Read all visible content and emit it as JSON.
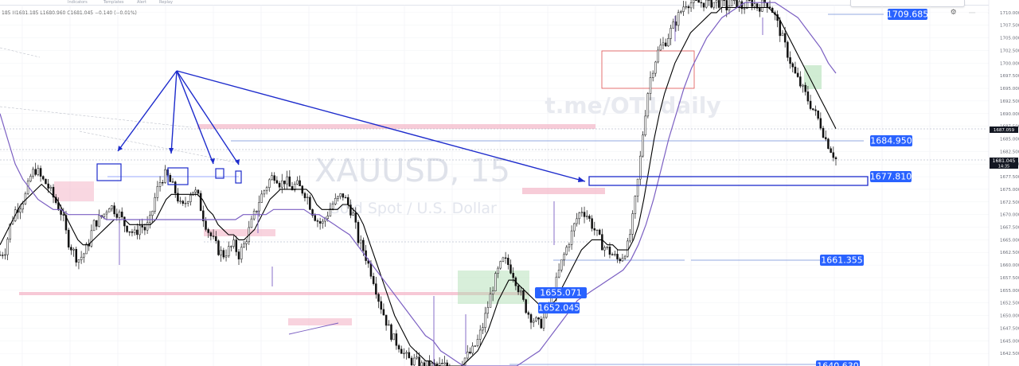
{
  "header": {
    "ohlc": "185  H1681.185  L1680.960  C1681.045  −0.140 (−0.01%)"
  },
  "watermark": {
    "symbol": "XAUUSD, 15",
    "description": "Gold Spot / U.S. Dollar",
    "channel": "t.me/OT1daily"
  },
  "chart_data": {
    "type": "candlestick",
    "symbol": "XAUUSD",
    "interval": "15",
    "description": "Gold Spot / U.S. Dollar",
    "ylim": [
      1640.0,
      1712.5
    ],
    "y_ticks": [
      1710.0,
      1707.5,
      1705.0,
      1702.5,
      1700.0,
      1697.5,
      1695.0,
      1692.5,
      1690.0,
      1687.5,
      1685.0,
      1682.5,
      1680.0,
      1677.5,
      1675.0,
      1672.5,
      1670.0,
      1667.5,
      1665.0,
      1662.5,
      1660.0,
      1657.5,
      1655.0,
      1652.5,
      1650.0,
      1647.5,
      1645.0,
      1642.5
    ],
    "y_tick_labels": [
      "1710.000",
      "1707.500",
      "1705.000",
      "1702.500",
      "1700.000",
      "1697.500",
      "1695.000",
      "1692.500",
      "1690.000",
      "1687.500",
      "1685.000",
      "1682.500",
      "1680.000",
      "1677.500",
      "1675.000",
      "1672.500",
      "1670.000",
      "1667.500",
      "1665.000",
      "1662.500",
      "1660.000",
      "1657.500",
      "1655.000",
      "1652.500",
      "1650.000",
      "1647.500",
      "1645.000",
      "1642.500"
    ],
    "current_price": "1681.045",
    "current_price_time": "14:35",
    "crosshair_price": "1687.059",
    "price_path": [
      1662,
      1663,
      1668,
      1671,
      1672,
      1674,
      1678,
      1679,
      1677,
      1676,
      1674,
      1672,
      1670,
      1665,
      1663,
      1661,
      1662,
      1664,
      1668,
      1669,
      1670,
      1672,
      1671,
      1670,
      1668,
      1667,
      1666,
      1668,
      1667,
      1669,
      1674,
      1677,
      1678,
      1676,
      1674,
      1671,
      1673,
      1675,
      1674,
      1670,
      1667,
      1665,
      1663,
      1662,
      1663,
      1664,
      1662,
      1664,
      1667,
      1670,
      1673,
      1675,
      1677,
      1678,
      1676,
      1677,
      1675,
      1676,
      1675,
      1674,
      1671,
      1669,
      1668,
      1670,
      1672,
      1673,
      1674,
      1672,
      1670,
      1665,
      1663,
      1660,
      1657,
      1653,
      1650,
      1647,
      1645,
      1644,
      1642,
      1641,
      1641,
      1640,
      1640,
      1640,
      1640,
      1640,
      1640,
      1640,
      1640,
      1641,
      1642,
      1643,
      1645,
      1648,
      1652,
      1656,
      1659,
      1661,
      1660,
      1658,
      1655,
      1652,
      1650,
      1649,
      1648,
      1650,
      1653,
      1656,
      1660,
      1663,
      1666,
      1669,
      1671,
      1670,
      1668,
      1666,
      1664,
      1663,
      1662,
      1661,
      1662,
      1664,
      1670,
      1678,
      1688,
      1696,
      1700,
      1703,
      1704,
      1706,
      1708,
      1710,
      1712,
      1712,
      1712,
      1712,
      1712,
      1712,
      1712,
      1712,
      1711,
      1712,
      1712,
      1711,
      1712,
      1712,
      1711,
      1712,
      1712,
      1710,
      1707,
      1704,
      1701,
      1698,
      1696,
      1694,
      1692,
      1690,
      1688,
      1685,
      1683,
      1681
    ],
    "ema_fast_path": [
      1664,
      1666,
      1668,
      1670,
      1672,
      1673,
      1674,
      1675,
      1676,
      1675,
      1674,
      1673,
      1671,
      1669,
      1667,
      1665,
      1664,
      1664,
      1665,
      1666,
      1667,
      1668,
      1669,
      1669,
      1669,
      1668,
      1668,
      1668,
      1668,
      1668,
      1669,
      1671,
      1673,
      1674,
      1674,
      1674,
      1674,
      1674,
      1674,
      1673,
      1671,
      1670,
      1668,
      1667,
      1666,
      1666,
      1665,
      1665,
      1666,
      1667,
      1669,
      1671,
      1673,
      1674,
      1675,
      1675,
      1675,
      1675,
      1675,
      1675,
      1674,
      1672,
      1671,
      1671,
      1671,
      1671,
      1672,
      1672,
      1671,
      1670,
      1668,
      1665,
      1662,
      1659,
      1656,
      1653,
      1650,
      1648,
      1646,
      1644,
      1643,
      1642,
      1641,
      1641,
      1640,
      1640,
      1640,
      1640,
      1640,
      1640,
      1641,
      1642,
      1643,
      1645,
      1647,
      1650,
      1653,
      1655,
      1657,
      1657,
      1656,
      1655,
      1654,
      1653,
      1652,
      1652,
      1652,
      1653,
      1655,
      1657,
      1659,
      1661,
      1663,
      1664,
      1665,
      1665,
      1665,
      1664,
      1664,
      1663,
      1663,
      1663,
      1665,
      1668,
      1673,
      1679,
      1685,
      1690,
      1694,
      1697,
      1700,
      1702,
      1704,
      1706,
      1707,
      1708,
      1709,
      1710,
      1710,
      1711,
      1711,
      1711,
      1711,
      1711,
      1711,
      1711,
      1711,
      1711,
      1711,
      1710,
      1709,
      1707,
      1705,
      1703,
      1701,
      1699,
      1697,
      1695,
      1693,
      1691,
      1689,
      1687
    ],
    "ma_slow_path": [
      1690,
      1685,
      1680,
      1677,
      1675,
      1673,
      1672,
      1671,
      1671,
      1670,
      1670,
      1670,
      1670,
      1670,
      1669,
      1669,
      1669,
      1669,
      1669,
      1669,
      1669,
      1669,
      1669,
      1669,
      1669,
      1669,
      1669,
      1669,
      1669,
      1669,
      1669,
      1669,
      1670,
      1670,
      1670,
      1670,
      1671,
      1671,
      1671,
      1671,
      1671,
      1670,
      1670,
      1669,
      1668,
      1667,
      1666,
      1664,
      1662,
      1660,
      1658,
      1656,
      1654,
      1652,
      1650,
      1648,
      1646,
      1645,
      1643,
      1642,
      1641,
      1640,
      1640,
      1640,
      1640,
      1640,
      1640,
      1640,
      1640,
      1641,
      1642,
      1643,
      1645,
      1647,
      1649,
      1651,
      1653,
      1654,
      1655,
      1656,
      1657,
      1658,
      1659,
      1661,
      1664,
      1668,
      1673,
      1679,
      1685,
      1690,
      1695,
      1699,
      1702,
      1705,
      1707,
      1709,
      1710,
      1711,
      1712,
      1712,
      1712,
      1712,
      1712,
      1711,
      1710,
      1709,
      1707,
      1705,
      1703,
      1700,
      1698
    ],
    "price_labels": [
      {
        "value": "1709.685"
      },
      {
        "value": "1684.950"
      },
      {
        "value": "1677.810"
      },
      {
        "value": "1661.355"
      },
      {
        "value": "1655.071"
      },
      {
        "value": "1652.045"
      },
      {
        "value": "1640.630"
      }
    ],
    "grid": true
  },
  "ui": {
    "close_glyph": "✕",
    "min_glyph": "—",
    "settings_glyph": "⚙",
    "toolbar_items": [
      "Indicators",
      "Templates",
      "Alert",
      "Replay"
    ]
  },
  "colors": {
    "candles": "#111111",
    "ema_fast": "#000000",
    "ma_slow": "#7b5fc2",
    "drawing_blue": "#1d2bcc",
    "supply_zone": "#f4b6c8",
    "demand_zone": "#a9dcae",
    "order_block_outline": "#e05050",
    "label_blue": "#2962ff"
  }
}
